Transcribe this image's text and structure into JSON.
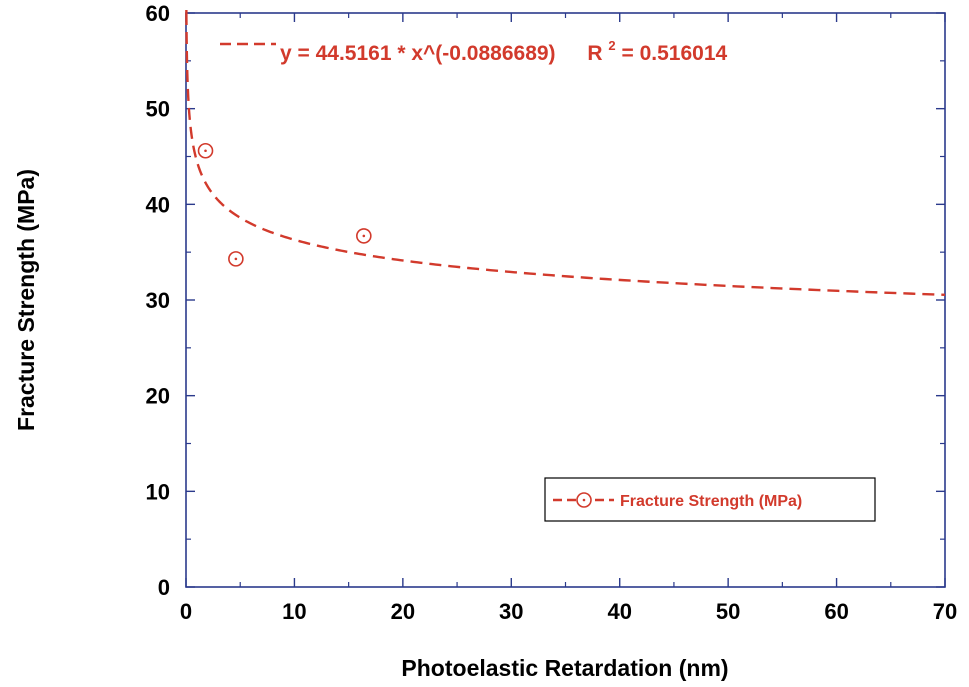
{
  "chart_data": {
    "type": "scatter",
    "xlabel": "Photoelastic Retardation (nm)",
    "ylabel": "Fracture Strength (MPa)",
    "xlim": [
      0,
      70
    ],
    "ylim": [
      0,
      60
    ],
    "x_ticks": [
      0,
      10,
      20,
      30,
      40,
      50,
      60,
      70
    ],
    "y_ticks": [
      0,
      10,
      20,
      30,
      40,
      50,
      60
    ],
    "grid": false,
    "series": [
      {
        "name": "Fracture Strength (MPa)",
        "points": [
          {
            "x": 1.8,
            "y": 45.6
          },
          {
            "x": 4.6,
            "y": 34.3
          },
          {
            "x": 16.4,
            "y": 36.7
          }
        ]
      }
    ],
    "fit": {
      "model": "power",
      "a": 44.5161,
      "b": -0.0886689,
      "equation_prefix": "y = 44.5161 * x^(-0.0886689)",
      "r2_label": "R",
      "r2_superscript": "2",
      "r2_value_text": "= 0.516014"
    },
    "legend_position": "bottom-right",
    "color": "#d23a2c",
    "frame_color": "#2b3a8c"
  }
}
